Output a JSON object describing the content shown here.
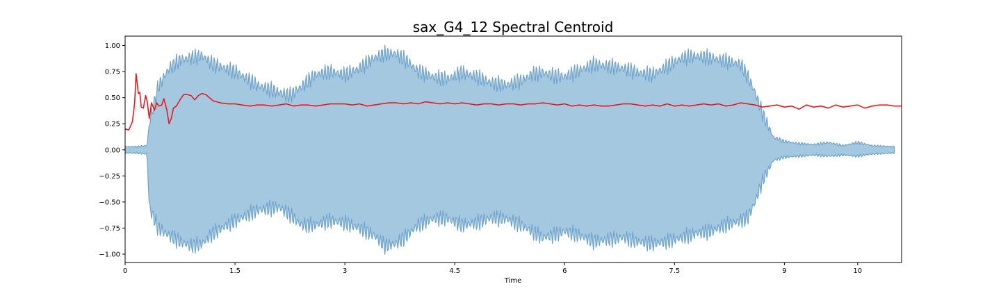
{
  "chart_data": {
    "type": "area",
    "title": "sax_G4_12 Spectral Centroid",
    "xlabel": "Time",
    "ylabel": "",
    "xlim": [
      0,
      10.6
    ],
    "ylim": [
      -1.08,
      1.09
    ],
    "x_ticks": [
      0,
      1.5,
      3,
      4.5,
      6,
      7.5,
      9,
      10
    ],
    "x_tick_labels": [
      "0",
      "1.5",
      "3",
      "4.5",
      "6",
      "7.5",
      "9",
      "10"
    ],
    "y_ticks": [
      1.0,
      0.75,
      0.5,
      0.25,
      0.0,
      -0.25,
      -0.5,
      -0.75,
      -1.0
    ],
    "y_tick_labels": [
      "1.00",
      "0.75",
      "0.50",
      "0.25",
      "0.00",
      "−0.25",
      "−0.50",
      "−0.75",
      "−1.00"
    ],
    "grid": false,
    "colors": {
      "waveform_fill": "#a5c8e1",
      "waveform_edge": "#6fa3cc",
      "centroid": "#e8191a"
    },
    "series": [
      {
        "kind": "waveform_envelope",
        "x": [
          0.0,
          0.15,
          0.3,
          0.33,
          0.45,
          0.6,
          0.75,
          0.9,
          1.05,
          1.2,
          1.5,
          1.8,
          2.1,
          2.25,
          2.4,
          2.6,
          2.8,
          3.0,
          3.2,
          3.4,
          3.55,
          3.7,
          3.85,
          4.0,
          4.2,
          4.4,
          4.6,
          4.8,
          5.0,
          5.2,
          5.4,
          5.55,
          5.7,
          5.85,
          6.0,
          6.2,
          6.4,
          6.6,
          6.8,
          7.0,
          7.2,
          7.4,
          7.6,
          7.8,
          8.0,
          8.2,
          8.4,
          8.5,
          8.6,
          8.7,
          8.85,
          9.0,
          9.2,
          9.4,
          9.6,
          9.8,
          10.0,
          10.2,
          10.5
        ],
        "upper": [
          0.03,
          0.03,
          0.04,
          0.25,
          0.6,
          0.78,
          0.86,
          0.88,
          0.9,
          0.82,
          0.75,
          0.62,
          0.55,
          0.52,
          0.6,
          0.72,
          0.75,
          0.72,
          0.78,
          0.88,
          0.92,
          0.92,
          0.85,
          0.75,
          0.7,
          0.68,
          0.74,
          0.7,
          0.64,
          0.62,
          0.66,
          0.72,
          0.74,
          0.71,
          0.7,
          0.76,
          0.82,
          0.8,
          0.78,
          0.74,
          0.72,
          0.8,
          0.88,
          0.9,
          0.88,
          0.85,
          0.82,
          0.7,
          0.55,
          0.35,
          0.12,
          0.08,
          0.06,
          0.05,
          0.07,
          0.04,
          0.07,
          0.04,
          0.03
        ],
        "lower": [
          -0.03,
          -0.03,
          -0.04,
          -0.55,
          -0.75,
          -0.82,
          -0.88,
          -0.92,
          -0.9,
          -0.8,
          -0.68,
          -0.58,
          -0.55,
          -0.62,
          -0.72,
          -0.72,
          -0.68,
          -0.7,
          -0.75,
          -0.82,
          -0.92,
          -0.9,
          -0.82,
          -0.72,
          -0.66,
          -0.66,
          -0.72,
          -0.7,
          -0.65,
          -0.66,
          -0.72,
          -0.78,
          -0.84,
          -0.82,
          -0.78,
          -0.82,
          -0.88,
          -0.86,
          -0.84,
          -0.88,
          -0.9,
          -0.88,
          -0.84,
          -0.8,
          -0.78,
          -0.72,
          -0.68,
          -0.65,
          -0.5,
          -0.3,
          -0.1,
          -0.07,
          -0.06,
          -0.05,
          -0.06,
          -0.05,
          -0.06,
          -0.04,
          -0.03
        ]
      },
      {
        "kind": "spectral_centroid",
        "x": [
          0.0,
          0.05,
          0.1,
          0.13,
          0.15,
          0.18,
          0.2,
          0.22,
          0.25,
          0.28,
          0.3,
          0.33,
          0.36,
          0.4,
          0.43,
          0.46,
          0.5,
          0.53,
          0.57,
          0.6,
          0.63,
          0.66,
          0.7,
          0.75,
          0.8,
          0.85,
          0.9,
          0.95,
          1.0,
          1.05,
          1.1,
          1.15,
          1.2,
          1.3,
          1.4,
          1.5,
          1.6,
          1.7,
          1.8,
          1.9,
          2.0,
          2.1,
          2.2,
          2.3,
          2.4,
          2.5,
          2.6,
          2.7,
          2.8,
          2.9,
          3.0,
          3.1,
          3.2,
          3.3,
          3.4,
          3.5,
          3.6,
          3.7,
          3.8,
          3.9,
          4.0,
          4.1,
          4.2,
          4.3,
          4.4,
          4.5,
          4.6,
          4.7,
          4.8,
          4.9,
          5.0,
          5.1,
          5.2,
          5.3,
          5.4,
          5.5,
          5.6,
          5.7,
          5.8,
          5.9,
          6.0,
          6.1,
          6.2,
          6.3,
          6.4,
          6.5,
          6.6,
          6.7,
          6.8,
          6.9,
          7.0,
          7.1,
          7.2,
          7.3,
          7.4,
          7.5,
          7.6,
          7.7,
          7.8,
          7.9,
          8.0,
          8.1,
          8.2,
          8.3,
          8.4,
          8.5,
          8.6,
          8.7,
          8.8,
          8.9,
          9.0,
          9.1,
          9.2,
          9.3,
          9.4,
          9.5,
          9.6,
          9.7,
          9.8,
          9.9,
          10.0,
          10.1,
          10.2,
          10.3,
          10.4,
          10.5,
          10.6
        ],
        "y": [
          0.2,
          0.19,
          0.27,
          0.45,
          0.73,
          0.54,
          0.55,
          0.41,
          0.4,
          0.52,
          0.47,
          0.3,
          0.45,
          0.38,
          0.45,
          0.42,
          0.43,
          0.49,
          0.38,
          0.25,
          0.3,
          0.4,
          0.42,
          0.48,
          0.53,
          0.53,
          0.52,
          0.48,
          0.52,
          0.54,
          0.53,
          0.5,
          0.47,
          0.45,
          0.44,
          0.44,
          0.43,
          0.42,
          0.43,
          0.43,
          0.42,
          0.43,
          0.44,
          0.42,
          0.43,
          0.43,
          0.42,
          0.43,
          0.44,
          0.44,
          0.44,
          0.43,
          0.44,
          0.42,
          0.43,
          0.44,
          0.45,
          0.45,
          0.44,
          0.45,
          0.44,
          0.46,
          0.45,
          0.44,
          0.45,
          0.44,
          0.45,
          0.44,
          0.43,
          0.44,
          0.44,
          0.43,
          0.44,
          0.44,
          0.43,
          0.44,
          0.44,
          0.45,
          0.44,
          0.43,
          0.44,
          0.42,
          0.43,
          0.42,
          0.43,
          0.42,
          0.42,
          0.43,
          0.44,
          0.44,
          0.43,
          0.42,
          0.43,
          0.42,
          0.44,
          0.42,
          0.43,
          0.42,
          0.43,
          0.44,
          0.43,
          0.44,
          0.42,
          0.43,
          0.45,
          0.44,
          0.43,
          0.41,
          0.42,
          0.43,
          0.41,
          0.42,
          0.39,
          0.43,
          0.41,
          0.42,
          0.4,
          0.43,
          0.41,
          0.42,
          0.43,
          0.4,
          0.42,
          0.43,
          0.43,
          0.42,
          0.42
        ]
      }
    ]
  }
}
